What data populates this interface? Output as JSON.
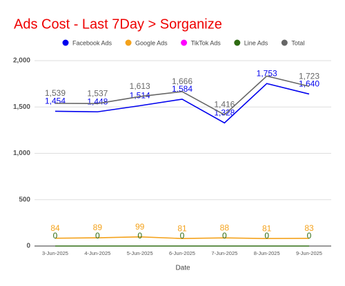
{
  "chart_data": {
    "type": "line",
    "title": "Ads Cost - Last 7Day > Sorganize",
    "x_label": "Date",
    "categories": [
      "3-Jun-2025",
      "4-Jun-2025",
      "5-Jun-2025",
      "6-Jun-2025",
      "7-Jun-2025",
      "8-Jun-2025",
      "9-Jun-2025"
    ],
    "series": [
      {
        "name": "Facebook Ads",
        "color": "#0000ee",
        "values": [
          1454,
          1448,
          1514,
          1584,
          1328,
          1753,
          1640
        ],
        "value_labels": [
          "1,454",
          "1,448",
          "1,514",
          "1,584",
          "1,328",
          "1,753",
          "1,640"
        ]
      },
      {
        "name": "Google Ads",
        "color": "#f4a21b",
        "values": [
          84,
          89,
          99,
          81,
          88,
          81,
          83
        ]
      },
      {
        "name": "TikTok Ads",
        "color": "#ff00ff",
        "values": [
          null,
          null,
          null,
          null,
          null,
          null,
          null
        ]
      },
      {
        "name": "Line Ads",
        "color": "#2e6b12",
        "values": [
          0,
          0,
          0,
          0,
          0,
          0,
          0
        ]
      },
      {
        "name": "Total",
        "color": "#666666",
        "values": [
          1539,
          1537,
          1613,
          1666,
          1416,
          1834,
          1723
        ],
        "value_labels": [
          "1,539",
          "1,537",
          "1,613",
          "1,666",
          "1,416",
          null,
          "1,723"
        ]
      }
    ],
    "ylim": [
      0,
      2000
    ],
    "yticks": [
      0,
      500,
      {
        "value": 1000,
        "label": "1,000"
      },
      {
        "value": 1500,
        "label": "1,500"
      },
      {
        "value": 2000,
        "label": "2,000"
      }
    ],
    "grid": true,
    "legend": "top",
    "title_color": "#ee0000"
  }
}
